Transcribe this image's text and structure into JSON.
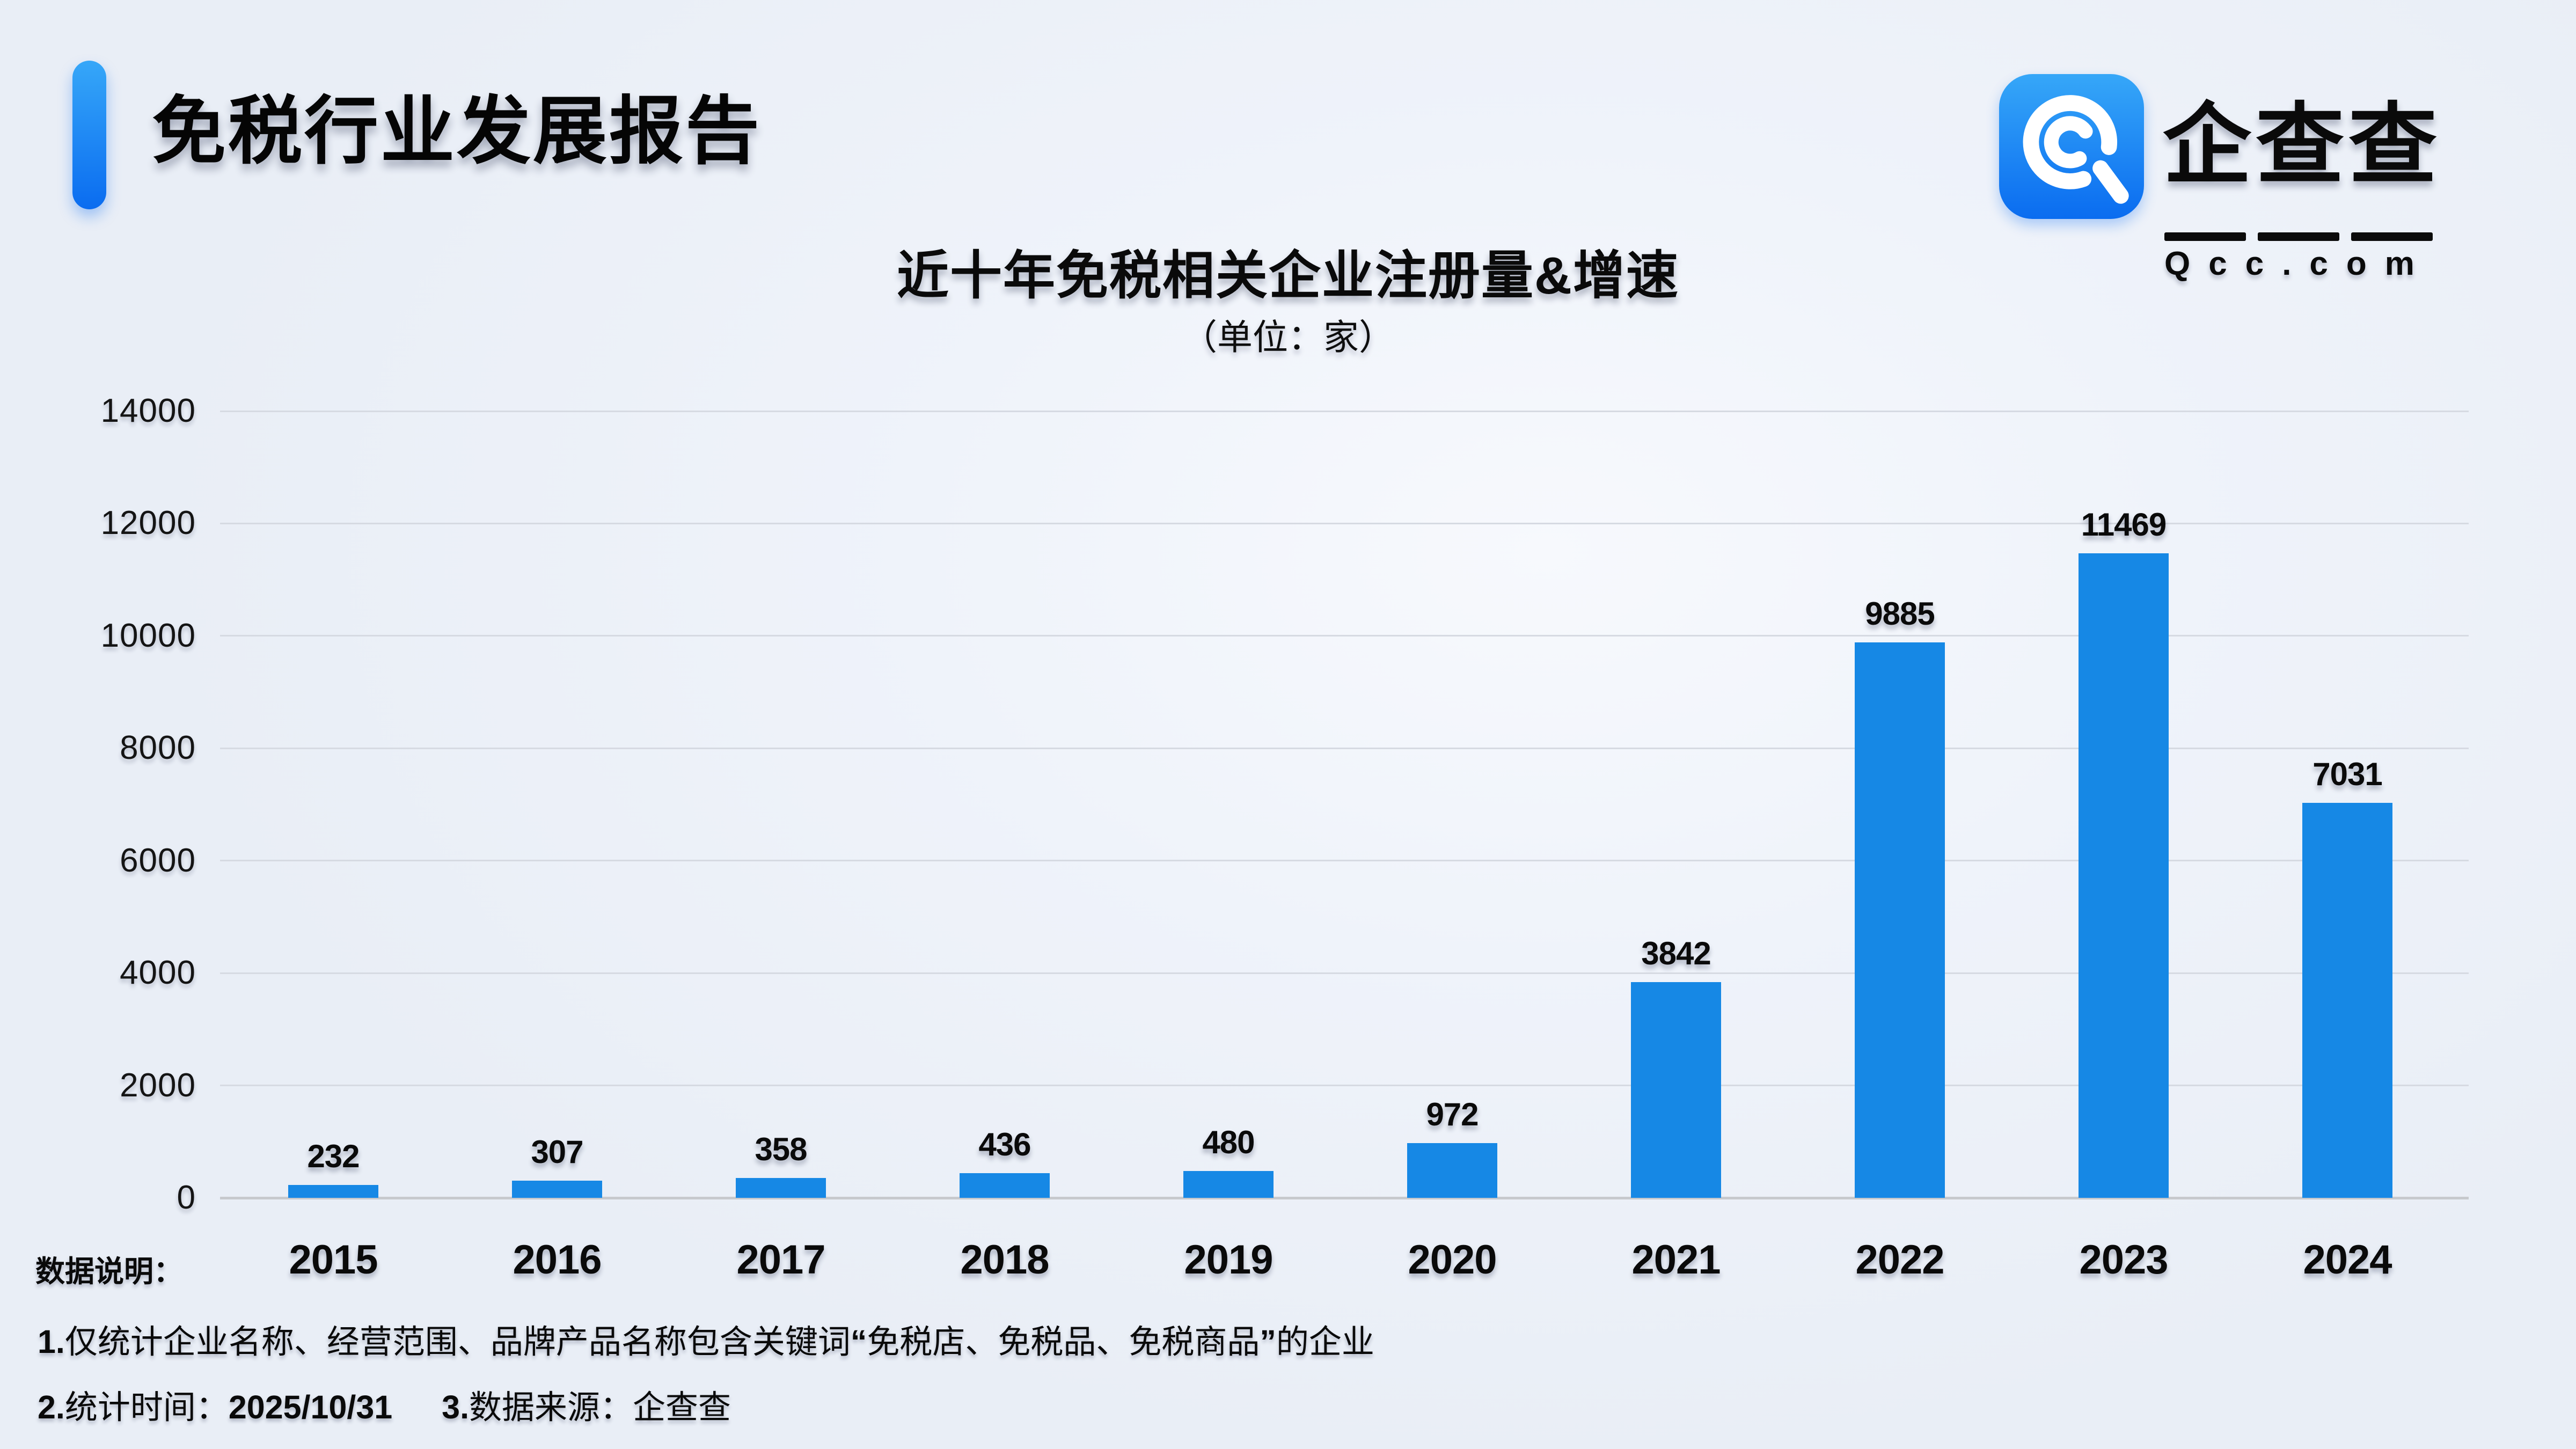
{
  "header": {
    "title": "免税行业发展报告"
  },
  "logo": {
    "brand": "企查查",
    "domain": "Qcc.com",
    "icon": "qcc-spiral-icon",
    "brand_blue": "#0d77f2"
  },
  "chart_data": {
    "type": "bar",
    "title": "近十年免税相关企业注册量&增速",
    "subtitle": "（单位：家）",
    "categories": [
      "2015",
      "2016",
      "2017",
      "2018",
      "2019",
      "2020",
      "2021",
      "2022",
      "2023",
      "2024"
    ],
    "values": [
      232,
      307,
      358,
      436,
      480,
      972,
      3842,
      9885,
      11469,
      7031
    ],
    "xlabel": "",
    "ylabel": "",
    "ylim": [
      0,
      14000
    ],
    "ytick_step": 2000,
    "grid": true,
    "legend": false,
    "value_labels": true,
    "bar_color": "#1688e5"
  },
  "footer": {
    "label": "数据说明：",
    "notes": [
      "1.仅统计企业名称、经营范围、品牌产品名称包含关键词“免税店、免税品、免税商品”的企业",
      "2.统计时间：2025/10/31",
      "3.数据来源：企查查"
    ]
  },
  "colors": {
    "background": "#edf1f8",
    "accent_gradient_top": "#36a7f8",
    "accent_gradient_bottom": "#0a6cf0",
    "bar": "#1688e5",
    "gridline": "#d6dae2",
    "axis_line": "#c7c9cd",
    "text": "#0a0a0a"
  }
}
